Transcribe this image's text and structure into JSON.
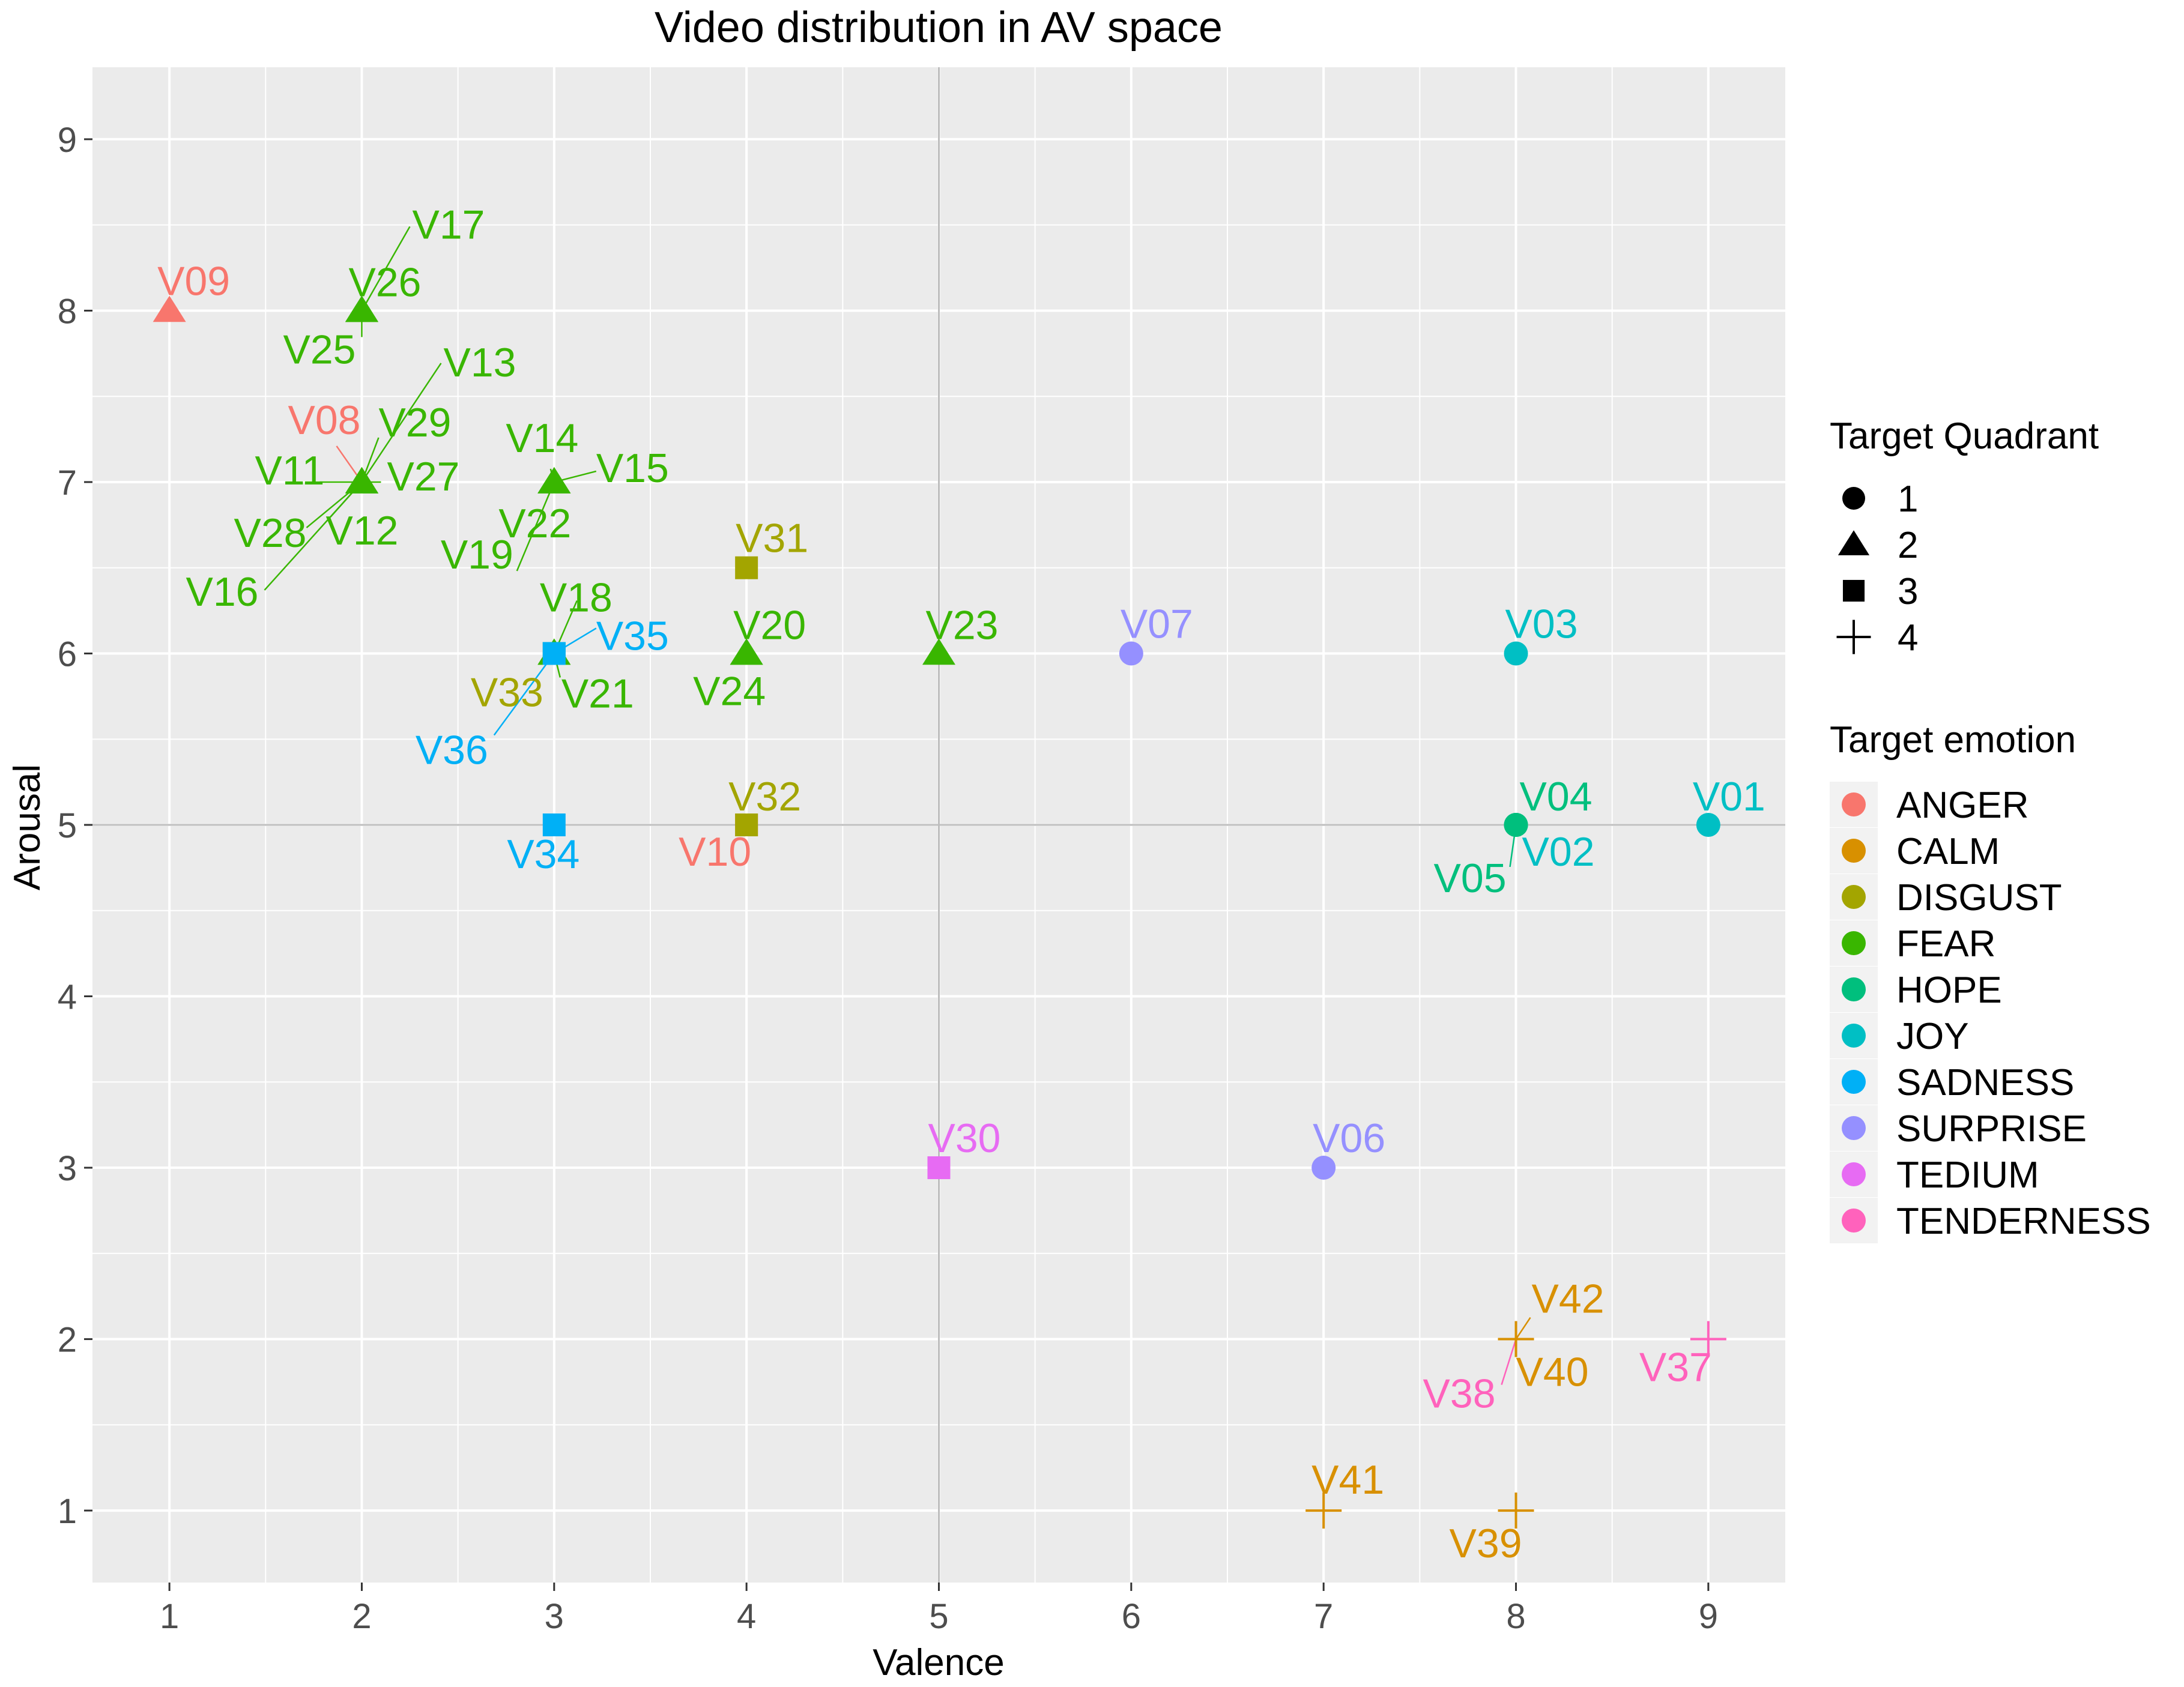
{
  "chart_data": {
    "type": "scatter",
    "title": "Video distribution in AV space",
    "xlabel": "Valence",
    "ylabel": "Arousal",
    "xlim": [
      0.6,
      9.4
    ],
    "ylim": [
      0.58,
      9.42
    ],
    "xticks": [
      1,
      2,
      3,
      4,
      5,
      6,
      7,
      8,
      9
    ],
    "yticks": [
      1,
      2,
      3,
      4,
      5,
      6,
      7,
      8,
      9
    ],
    "xtick_labels": [
      "1",
      "2",
      "3",
      "4",
      "5",
      "6",
      "7",
      "8",
      "9"
    ],
    "ytick_labels": [
      "1",
      "2",
      "3",
      "4",
      "5",
      "6",
      "7",
      "8",
      "9"
    ],
    "reference_lines": {
      "x": 5,
      "y": 5
    },
    "grid": true,
    "legend_shape": {
      "title": "Target Quadrant",
      "items": [
        {
          "label": "1",
          "shape": "circle"
        },
        {
          "label": "2",
          "shape": "triangle"
        },
        {
          "label": "3",
          "shape": "square"
        },
        {
          "label": "4",
          "shape": "plus"
        }
      ]
    },
    "legend_color": {
      "title": "Target emotion",
      "items": [
        {
          "label": "ANGER",
          "color": "#F8766D"
        },
        {
          "label": "CALM",
          "color": "#D89000"
        },
        {
          "label": "DISGUST",
          "color": "#A3A500"
        },
        {
          "label": "FEAR",
          "color": "#39B600"
        },
        {
          "label": "HOPE",
          "color": "#00BF7D"
        },
        {
          "label": "JOY",
          "color": "#00BFC4"
        },
        {
          "label": "SADNESS",
          "color": "#00B0F6"
        },
        {
          "label": "SURPRISE",
          "color": "#9590FF"
        },
        {
          "label": "TEDIUM",
          "color": "#E76BF3"
        },
        {
          "label": "TENDERNESS",
          "color": "#FF62BC"
        }
      ]
    },
    "points": [
      {
        "id": "V01",
        "valence": 9,
        "arousal": 5,
        "quadrant": "1",
        "emotion": "JOY"
      },
      {
        "id": "V02",
        "valence": 8,
        "arousal": 5,
        "quadrant": "1",
        "emotion": "JOY"
      },
      {
        "id": "V03",
        "valence": 8,
        "arousal": 6,
        "quadrant": "1",
        "emotion": "JOY"
      },
      {
        "id": "V04",
        "valence": 8,
        "arousal": 5,
        "quadrant": "1",
        "emotion": "HOPE"
      },
      {
        "id": "V05",
        "valence": 8,
        "arousal": 5,
        "quadrant": "1",
        "emotion": "HOPE"
      },
      {
        "id": "V06",
        "valence": 7,
        "arousal": 3,
        "quadrant": "1",
        "emotion": "SURPRISE"
      },
      {
        "id": "V07",
        "valence": 6,
        "arousal": 6,
        "quadrant": "1",
        "emotion": "SURPRISE"
      },
      {
        "id": "V08",
        "valence": 2,
        "arousal": 7,
        "quadrant": "2",
        "emotion": "ANGER"
      },
      {
        "id": "V09",
        "valence": 1,
        "arousal": 8,
        "quadrant": "2",
        "emotion": "ANGER"
      },
      {
        "id": "V10",
        "valence": 4,
        "arousal": 5,
        "quadrant": "3",
        "emotion": "ANGER"
      },
      {
        "id": "V11",
        "valence": 2,
        "arousal": 7,
        "quadrant": "2",
        "emotion": "FEAR"
      },
      {
        "id": "V12",
        "valence": 2,
        "arousal": 7,
        "quadrant": "2",
        "emotion": "FEAR"
      },
      {
        "id": "V13",
        "valence": 2,
        "arousal": 7,
        "quadrant": "2",
        "emotion": "FEAR"
      },
      {
        "id": "V14",
        "valence": 3,
        "arousal": 7,
        "quadrant": "2",
        "emotion": "FEAR"
      },
      {
        "id": "V15",
        "valence": 3,
        "arousal": 7,
        "quadrant": "2",
        "emotion": "FEAR"
      },
      {
        "id": "V16",
        "valence": 2,
        "arousal": 7,
        "quadrant": "2",
        "emotion": "FEAR"
      },
      {
        "id": "V17",
        "valence": 2,
        "arousal": 8,
        "quadrant": "2",
        "emotion": "FEAR"
      },
      {
        "id": "V18",
        "valence": 3,
        "arousal": 6,
        "quadrant": "2",
        "emotion": "FEAR"
      },
      {
        "id": "V19",
        "valence": 3,
        "arousal": 7,
        "quadrant": "2",
        "emotion": "FEAR"
      },
      {
        "id": "V20",
        "valence": 4,
        "arousal": 6,
        "quadrant": "2",
        "emotion": "FEAR"
      },
      {
        "id": "V21",
        "valence": 3,
        "arousal": 6,
        "quadrant": "2",
        "emotion": "FEAR"
      },
      {
        "id": "V22",
        "valence": 3,
        "arousal": 7,
        "quadrant": "2",
        "emotion": "FEAR"
      },
      {
        "id": "V23",
        "valence": 5,
        "arousal": 6,
        "quadrant": "2",
        "emotion": "FEAR"
      },
      {
        "id": "V24",
        "valence": 4,
        "arousal": 6,
        "quadrant": "2",
        "emotion": "FEAR"
      },
      {
        "id": "V25",
        "valence": 2,
        "arousal": 8,
        "quadrant": "2",
        "emotion": "FEAR"
      },
      {
        "id": "V26",
        "valence": 2,
        "arousal": 8,
        "quadrant": "2",
        "emotion": "FEAR"
      },
      {
        "id": "V27",
        "valence": 2,
        "arousal": 7,
        "quadrant": "2",
        "emotion": "FEAR"
      },
      {
        "id": "V28",
        "valence": 2,
        "arousal": 7,
        "quadrant": "2",
        "emotion": "FEAR"
      },
      {
        "id": "V29",
        "valence": 2,
        "arousal": 7,
        "quadrant": "2",
        "emotion": "FEAR"
      },
      {
        "id": "V30",
        "valence": 5,
        "arousal": 3,
        "quadrant": "3",
        "emotion": "TEDIUM"
      },
      {
        "id": "V31",
        "valence": 4,
        "arousal": 6.5,
        "quadrant": "3",
        "emotion": "DISGUST"
      },
      {
        "id": "V32",
        "valence": 4,
        "arousal": 5,
        "quadrant": "3",
        "emotion": "DISGUST"
      },
      {
        "id": "V33",
        "valence": 3,
        "arousal": 6,
        "quadrant": "3",
        "emotion": "DISGUST"
      },
      {
        "id": "V34",
        "valence": 3,
        "arousal": 5,
        "quadrant": "3",
        "emotion": "SADNESS"
      },
      {
        "id": "V35",
        "valence": 3,
        "arousal": 6,
        "quadrant": "3",
        "emotion": "SADNESS"
      },
      {
        "id": "V36",
        "valence": 3,
        "arousal": 6,
        "quadrant": "3",
        "emotion": "SADNESS"
      },
      {
        "id": "V37",
        "valence": 9,
        "arousal": 2,
        "quadrant": "4",
        "emotion": "TENDERNESS"
      },
      {
        "id": "V38",
        "valence": 8,
        "arousal": 2,
        "quadrant": "4",
        "emotion": "TENDERNESS"
      },
      {
        "id": "V39",
        "valence": 8,
        "arousal": 1,
        "quadrant": "4",
        "emotion": "CALM"
      },
      {
        "id": "V40",
        "valence": 8,
        "arousal": 2,
        "quadrant": "4",
        "emotion": "CALM"
      },
      {
        "id": "V41",
        "valence": 7,
        "arousal": 1,
        "quadrant": "4",
        "emotion": "CALM"
      },
      {
        "id": "V42",
        "valence": 8,
        "arousal": 2,
        "quadrant": "4",
        "emotion": "CALM"
      }
    ]
  }
}
